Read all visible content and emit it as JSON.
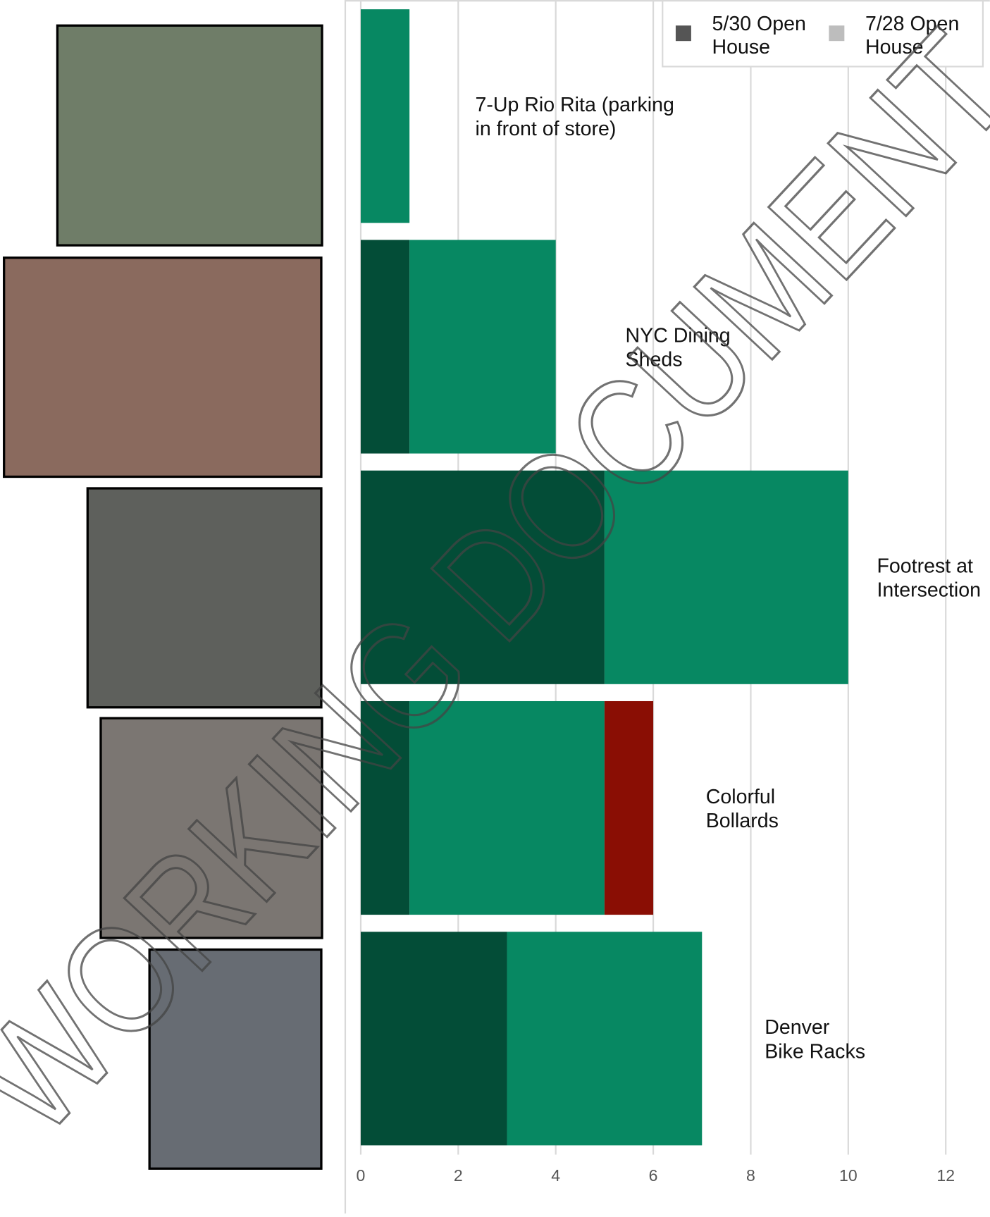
{
  "chart_data": {
    "type": "stacked-barh",
    "categories": [
      [
        "7-Up Rio Rita (parking",
        "in front of store)"
      ],
      [
        "NYC Dining",
        "Sheds"
      ],
      [
        "Footrest at",
        "Intersection"
      ],
      [
        "Colorful",
        "Bollards"
      ],
      [
        "Denver",
        "Bike Racks"
      ]
    ],
    "series": [
      {
        "name": [
          "5/30 Open",
          "House"
        ],
        "color": "#034d37",
        "legend_color": "#555555",
        "values": [
          0,
          1,
          5,
          1,
          3
        ]
      },
      {
        "name": [
          "7/28 Open",
          "House"
        ],
        "color": "#078862",
        "legend_color": "#bdbdbd",
        "values": [
          1,
          3,
          5,
          4,
          4
        ]
      },
      {
        "color": "#8a0e04",
        "values": [
          0,
          0,
          0,
          1,
          0
        ]
      }
    ],
    "xlim": [
      0,
      12.9
    ],
    "xticks": [
      0,
      2,
      4,
      6,
      8,
      10,
      12
    ],
    "grid": true,
    "watermark": "WORKING DOCUMENT"
  }
}
